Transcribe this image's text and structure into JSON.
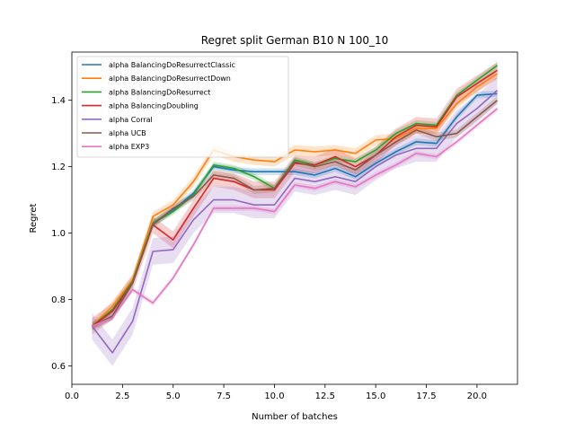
{
  "chart_data": {
    "type": "line",
    "title": "Regret split German B10 N 100_10",
    "xlabel": "Number of batches",
    "ylabel": "Regret",
    "xlim": [
      0.0,
      22.0
    ],
    "ylim": [
      0.545,
      1.545
    ],
    "xticks": [
      0.0,
      2.5,
      5.0,
      7.5,
      10.0,
      12.5,
      15.0,
      17.5,
      20.0
    ],
    "xtick_labels": [
      "0.0",
      "2.5",
      "5.0",
      "7.5",
      "10.0",
      "12.5",
      "15.0",
      "17.5",
      "20.0"
    ],
    "yticks": [
      0.6,
      0.8,
      1.0,
      1.2,
      1.4
    ],
    "ytick_labels": [
      "0.6",
      "0.8",
      "1.0",
      "1.2",
      "1.4"
    ],
    "grid": false,
    "legend_position": "top-left",
    "x": [
      1,
      2,
      3,
      4,
      5,
      6,
      7,
      8,
      9,
      10,
      11,
      12,
      13,
      14,
      15,
      16,
      17,
      18,
      19,
      20,
      21
    ],
    "series": [
      {
        "name": "alpha BalancingDoResurrectClassic",
        "color": "#1f77b4",
        "values": [
          0.72,
          0.75,
          0.85,
          1.03,
          1.07,
          1.12,
          1.2,
          1.19,
          1.185,
          1.185,
          1.185,
          1.175,
          1.195,
          1.17,
          1.21,
          1.245,
          1.275,
          1.27,
          1.35,
          1.415,
          1.42
        ],
        "band": 0.01
      },
      {
        "name": "alpha BalancingDoResurrectDown",
        "color": "#ff7f0e",
        "values": [
          0.72,
          0.78,
          0.86,
          1.05,
          1.085,
          1.155,
          1.25,
          1.23,
          1.22,
          1.215,
          1.25,
          1.245,
          1.25,
          1.24,
          1.28,
          1.285,
          1.315,
          1.315,
          1.39,
          1.44,
          1.48
        ],
        "band": 0.015
      },
      {
        "name": "alpha BalancingDoResurrect",
        "color": "#2ca02c",
        "values": [
          0.72,
          0.77,
          0.855,
          1.03,
          1.065,
          1.115,
          1.205,
          1.195,
          1.17,
          1.135,
          1.22,
          1.205,
          1.225,
          1.215,
          1.25,
          1.3,
          1.33,
          1.325,
          1.415,
          1.46,
          1.505
        ],
        "band": 0.01
      },
      {
        "name": "alpha BalancingDoubling",
        "color": "#d62728",
        "values": [
          0.72,
          0.765,
          0.85,
          1.025,
          0.98,
          1.075,
          1.165,
          1.155,
          1.13,
          1.13,
          1.21,
          1.205,
          1.23,
          1.2,
          1.235,
          1.29,
          1.325,
          1.32,
          1.41,
          1.45,
          1.49
        ],
        "band": 0.025
      },
      {
        "name": "alpha Corral",
        "color": "#9467bd",
        "values": [
          0.72,
          0.64,
          0.735,
          0.945,
          0.95,
          1.04,
          1.1,
          1.1,
          1.085,
          1.085,
          1.165,
          1.155,
          1.17,
          1.155,
          1.2,
          1.235,
          1.255,
          1.255,
          1.33,
          1.375,
          1.43
        ],
        "band": 0.04
      },
      {
        "name": "alpha UCB",
        "color": "#8c564b",
        "values": [
          0.72,
          0.75,
          0.85,
          1.025,
          1.075,
          1.11,
          1.175,
          1.165,
          1.13,
          1.135,
          1.215,
          1.2,
          1.215,
          1.19,
          1.235,
          1.275,
          1.31,
          1.29,
          1.3,
          1.35,
          1.4
        ],
        "band": 0.012
      },
      {
        "name": "alpha EXP3",
        "color": "#e377c2",
        "values": [
          0.72,
          0.745,
          0.83,
          0.79,
          0.865,
          0.965,
          1.075,
          1.075,
          1.075,
          1.065,
          1.145,
          1.135,
          1.155,
          1.14,
          1.175,
          1.205,
          1.24,
          1.23,
          1.275,
          1.325,
          1.375
        ],
        "band": 0.008
      }
    ]
  }
}
